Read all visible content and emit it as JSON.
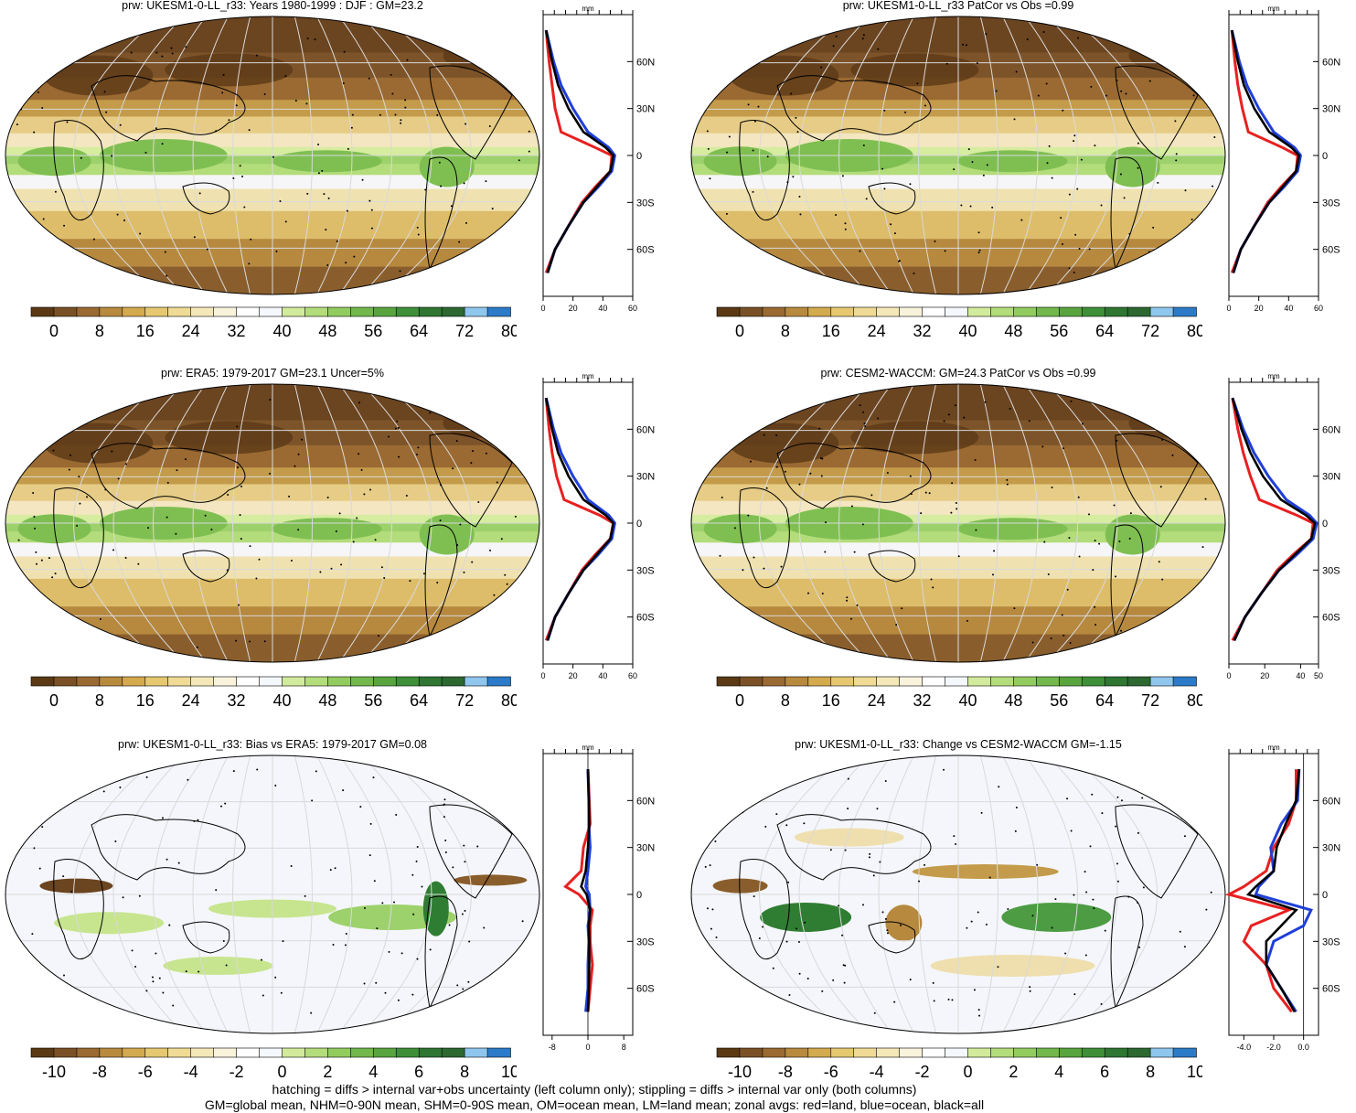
{
  "panels": [
    {
      "id": "p1",
      "title": "prw: UKESM1-0-LL_r33: Years 1980-1999 : DJF : GM=23.2",
      "kind": "abs",
      "unit": "mm",
      "zonal_xticks": [
        "0",
        "20",
        "40",
        "60"
      ],
      "zonal_xlim": [
        0,
        60
      ]
    },
    {
      "id": "p2",
      "title": "prw: UKESM1-0-LL_r33 PatCor vs Obs =0.99",
      "kind": "abs",
      "unit": "mm",
      "zonal_xticks": [
        "0",
        "20",
        "40",
        "60"
      ],
      "zonal_xlim": [
        0,
        60
      ]
    },
    {
      "id": "p3",
      "title": "prw: ERA5: 1979-2017 GM=23.1 Uncer=5%",
      "kind": "abs",
      "unit": "mm",
      "zonal_xticks": [
        "0",
        "20",
        "40",
        "60"
      ],
      "zonal_xlim": [
        0,
        60
      ]
    },
    {
      "id": "p4",
      "title": "prw: CESM2-WACCM: GM=24.3 PatCor vs Obs =0.99",
      "kind": "abs",
      "unit": "mm",
      "zonal_xticks": [
        "0",
        "20",
        "40",
        "50"
      ],
      "zonal_xlim": [
        0,
        50
      ]
    },
    {
      "id": "p5",
      "title": "prw: UKESM1-0-LL_r33: Bias vs ERA5: 1979-2017 GM=0.08",
      "kind": "bias",
      "unit": "mm",
      "zonal_xticks": [
        "-8",
        "0",
        "8"
      ],
      "zonal_xlim": [
        -10,
        10
      ]
    },
    {
      "id": "p6",
      "title": "prw: UKESM1-0-LL_r33: Change vs CESM2-WACCM GM=-1.15",
      "kind": "change",
      "unit": "mm",
      "zonal_xticks": [
        "-4.0",
        "-2.0",
        "0.0"
      ],
      "zonal_xlim": [
        -5,
        1
      ]
    }
  ],
  "lat_ticks": [
    "60N",
    "30N",
    "0",
    "30S",
    "60S"
  ],
  "colorbar_abs_labels": [
    "0",
    "8",
    "16",
    "24",
    "32",
    "40",
    "48",
    "56",
    "64",
    "72",
    "80"
  ],
  "colorbar_diff_labels": [
    "-10",
    "-8",
    "-6",
    "-4",
    "-2",
    "0",
    "2",
    "4",
    "6",
    "8",
    "10"
  ],
  "colorbar_colors": [
    "#5a3914",
    "#7a5126",
    "#9a6a32",
    "#b88a3e",
    "#d4aa4e",
    "#e6c870",
    "#efdb95",
    "#f5e8b8",
    "#faf3dc",
    "#ffffff",
    "#f4f7fb",
    "#d2ea9c",
    "#b3dc7a",
    "#92cc5f",
    "#72b84c",
    "#58a53f",
    "#3f8f38",
    "#2e7631",
    "#2c6830",
    "#8fc6ee",
    "#2b7bc8"
  ],
  "footer": {
    "line1": "hatching = diffs > internal var+obs uncertainty (left column only); stippling = diffs > internal var only (both columns)",
    "line2": "GM=global mean, NHM=0-90N mean, SHM=0-90S mean, OM=ocean mean, LM=land mean; zonal avgs: red=land, blue=ocean, black=all"
  },
  "chart_data": [
    {
      "type": "line",
      "title": "prw: UKESM1-0-LL_r33: Years 1980-1999 : DJF : GM=23.2",
      "xlabel": "mm",
      "xlim": [
        0,
        60
      ],
      "ylim": [
        -90,
        90
      ],
      "y": [
        80,
        60,
        45,
        30,
        15,
        5,
        0,
        -10,
        -20,
        -30,
        -45,
        -60,
        -75
      ],
      "series": [
        {
          "name": "land",
          "values": [
            2,
            4,
            6,
            8,
            12,
            35,
            46,
            45,
            35,
            26,
            17,
            8,
            2
          ]
        },
        {
          "name": "ocean",
          "values": [
            2,
            7,
            12,
            20,
            30,
            44,
            48,
            46,
            37,
            27,
            17,
            8,
            3
          ]
        },
        {
          "name": "all",
          "values": [
            2,
            6,
            10,
            17,
            27,
            42,
            47,
            45,
            36,
            27,
            17,
            8,
            3
          ]
        }
      ]
    },
    {
      "type": "line",
      "title": "prw: UKESM1-0-LL_r33 PatCor vs Obs =0.99",
      "xlabel": "mm",
      "xlim": [
        0,
        60
      ],
      "ylim": [
        -90,
        90
      ],
      "y": [
        80,
        60,
        45,
        30,
        15,
        5,
        0,
        -10,
        -20,
        -30,
        -45,
        -60,
        -75
      ],
      "series": [
        {
          "name": "land",
          "values": [
            2,
            4,
            6,
            9,
            13,
            36,
            46,
            45,
            35,
            26,
            17,
            8,
            2
          ]
        },
        {
          "name": "ocean",
          "values": [
            2,
            7,
            12,
            20,
            30,
            44,
            48,
            46,
            37,
            27,
            17,
            8,
            3
          ]
        },
        {
          "name": "all",
          "values": [
            2,
            6,
            10,
            17,
            27,
            42,
            47,
            45,
            36,
            27,
            17,
            8,
            3
          ]
        }
      ]
    },
    {
      "type": "line",
      "title": "prw: ERA5: 1979-2017 GM=23.1 Uncer=5%",
      "xlabel": "mm",
      "xlim": [
        0,
        60
      ],
      "ylim": [
        -90,
        90
      ],
      "y": [
        80,
        60,
        45,
        30,
        15,
        5,
        0,
        -10,
        -20,
        -30,
        -45,
        -60,
        -75
      ],
      "series": [
        {
          "name": "land",
          "values": [
            2,
            4,
            6,
            9,
            14,
            38,
            47,
            45,
            35,
            26,
            17,
            8,
            2
          ]
        },
        {
          "name": "ocean",
          "values": [
            2,
            7,
            12,
            20,
            30,
            44,
            48,
            46,
            37,
            27,
            17,
            8,
            3
          ]
        },
        {
          "name": "all",
          "values": [
            2,
            6,
            10,
            17,
            27,
            42,
            47,
            45,
            36,
            27,
            17,
            8,
            3
          ]
        }
      ]
    },
    {
      "type": "line",
      "title": "prw: CESM2-WACCM: GM=24.3 PatCor vs Obs =0.99",
      "xlabel": "mm",
      "xlim": [
        0,
        50
      ],
      "ylim": [
        -90,
        90
      ],
      "y": [
        80,
        60,
        45,
        30,
        15,
        5,
        0,
        -10,
        -20,
        -30,
        -45,
        -60,
        -75
      ],
      "series": [
        {
          "name": "land",
          "values": [
            2,
            5,
            8,
            12,
            17,
            38,
            47,
            46,
            36,
            27,
            18,
            9,
            2
          ]
        },
        {
          "name": "ocean",
          "values": [
            2,
            8,
            14,
            22,
            32,
            45,
            49,
            47,
            38,
            28,
            18,
            9,
            3
          ]
        },
        {
          "name": "all",
          "values": [
            2,
            7,
            12,
            19,
            29,
            43,
            48,
            46,
            37,
            28,
            18,
            9,
            3
          ]
        }
      ]
    },
    {
      "type": "line",
      "title": "prw: UKESM1-0-LL_r33: Bias vs ERA5: 1979-2017 GM=0.08",
      "xlabel": "mm",
      "xlim": [
        -10,
        10
      ],
      "ylim": [
        -90,
        90
      ],
      "y": [
        80,
        60,
        45,
        30,
        15,
        5,
        0,
        -10,
        -20,
        -30,
        -45,
        -60,
        -75
      ],
      "series": [
        {
          "name": "land",
          "values": [
            0,
            0.3,
            0.5,
            -1,
            -1.5,
            -5,
            -2,
            1,
            0.5,
            0.5,
            1,
            0.5,
            0
          ]
        },
        {
          "name": "ocean",
          "values": [
            0,
            0.2,
            0.2,
            0.5,
            0,
            -0.5,
            0.3,
            0.5,
            0,
            0.2,
            0,
            0,
            -0.5
          ]
        },
        {
          "name": "all",
          "values": [
            0,
            0.2,
            0.3,
            0,
            -0.5,
            -1.5,
            -0.3,
            0.5,
            0.2,
            0.3,
            0.3,
            0.2,
            0
          ]
        }
      ]
    },
    {
      "type": "line",
      "title": "prw: UKESM1-0-LL_r33: Change vs CESM2-WACCM GM=-1.15",
      "xlabel": "mm",
      "xlim": [
        -5,
        1
      ],
      "ylim": [
        -90,
        90
      ],
      "y": [
        80,
        60,
        45,
        30,
        15,
        5,
        0,
        -10,
        -20,
        -30,
        -45,
        -60,
        -75
      ],
      "series": [
        {
          "name": "land",
          "values": [
            -0.5,
            -0.5,
            -1,
            -2,
            -2.5,
            -4,
            -5,
            -1,
            -3.5,
            -4,
            -2.5,
            -2,
            -0.8
          ]
        },
        {
          "name": "ocean",
          "values": [
            -0.3,
            -0.4,
            -1.5,
            -2.2,
            -2,
            -3,
            -3.2,
            0.5,
            0,
            -2,
            -2.5,
            -1.5,
            -0.5
          ]
        },
        {
          "name": "all",
          "values": [
            -0.3,
            -0.5,
            -1.2,
            -1.8,
            -2,
            -3.2,
            -3.7,
            -0.5,
            -1.5,
            -2.5,
            -2.5,
            -1.5,
            -0.6
          ]
        }
      ]
    }
  ]
}
